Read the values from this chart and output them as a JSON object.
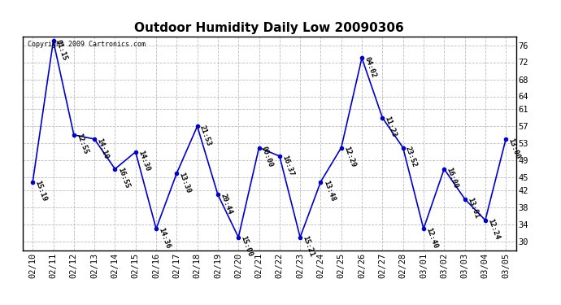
{
  "title": "Outdoor Humidity Daily Low 20090306",
  "copyright": "Copyright 2009 Cartronics.com",
  "line_color": "#0000cc",
  "background_color": "#ffffff",
  "grid_color": "#bbbbbb",
  "dates": [
    "02/10",
    "02/11",
    "02/12",
    "02/13",
    "02/14",
    "02/15",
    "02/16",
    "02/17",
    "02/18",
    "02/19",
    "02/20",
    "02/21",
    "02/22",
    "02/23",
    "02/24",
    "02/25",
    "02/26",
    "02/27",
    "02/28",
    "03/01",
    "03/02",
    "03/03",
    "03/04",
    "03/05"
  ],
  "values": [
    44,
    77,
    55,
    54,
    47,
    51,
    33,
    46,
    57,
    41,
    31,
    52,
    50,
    31,
    44,
    52,
    73,
    59,
    52,
    33,
    47,
    40,
    35,
    54
  ],
  "labels": [
    "15:19",
    "01:15",
    "12:55",
    "14:10",
    "16:55",
    "14:30",
    "14:36",
    "13:30",
    "21:53",
    "20:44",
    "15:00",
    "00:00",
    "16:37",
    "15:21",
    "13:48",
    "12:29",
    "04:02",
    "11:23",
    "23:52",
    "12:40",
    "16:00",
    "13:01",
    "12:24",
    "13:00"
  ],
  "yticks": [
    30,
    34,
    38,
    42,
    45,
    49,
    53,
    57,
    61,
    64,
    68,
    72,
    76
  ],
  "ylim": [
    28,
    78
  ],
  "title_fontsize": 11,
  "label_fontsize": 6.5,
  "axis_fontsize": 7.5
}
